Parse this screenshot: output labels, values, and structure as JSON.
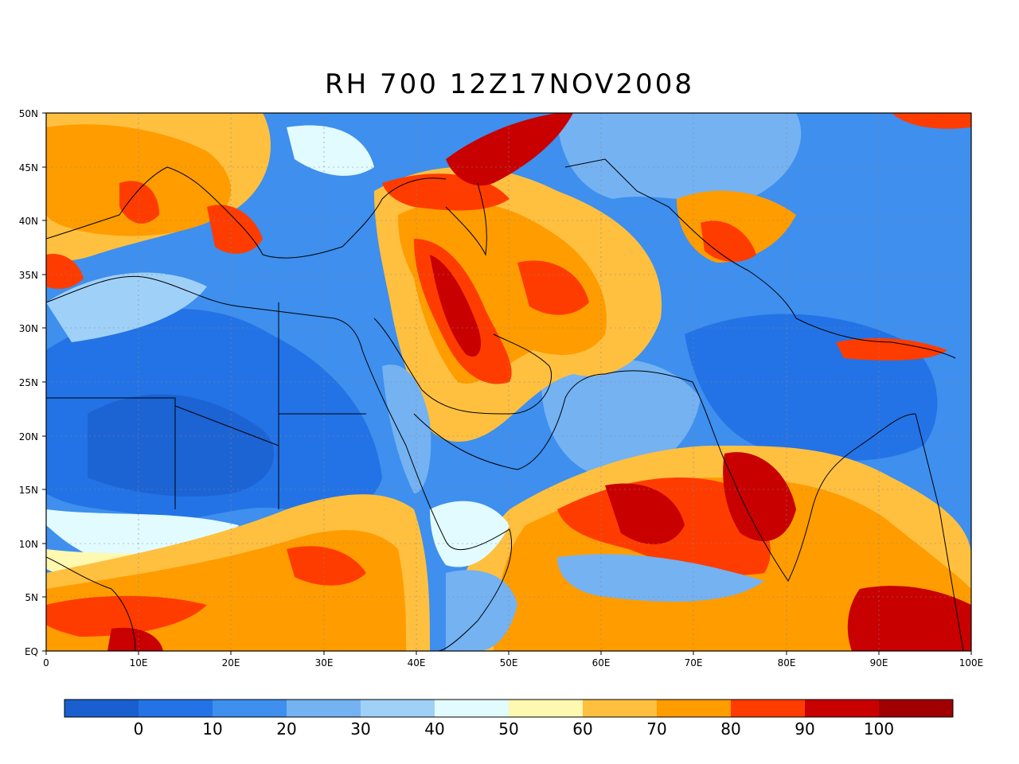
{
  "title": "RH 700 12Z17NOV2008",
  "lat_ticks": [
    "50N",
    "45N",
    "40N",
    "35N",
    "30N",
    "25N",
    "20N",
    "15N",
    "10N",
    "5N",
    "EQ"
  ],
  "lon_ticks": [
    "0",
    "10E",
    "20E",
    "30E",
    "40E",
    "50E",
    "60E",
    "70E",
    "80E",
    "90E",
    "100E"
  ],
  "colorbar": {
    "labels": [
      "0",
      "10",
      "20",
      "30",
      "40",
      "50",
      "60",
      "70",
      "80",
      "90",
      "100"
    ],
    "colors": [
      "#1a5fcf",
      "#2373e6",
      "#3e8fee",
      "#74b2f2",
      "#9fd0f8",
      "#e2fbff",
      "#fff8b0",
      "#ffc040",
      "#ff9c00",
      "#ff3c00",
      "#c80000",
      "#a00000"
    ]
  },
  "map_extent": {
    "lon": [
      0,
      100
    ],
    "lat": [
      0,
      50
    ]
  }
}
